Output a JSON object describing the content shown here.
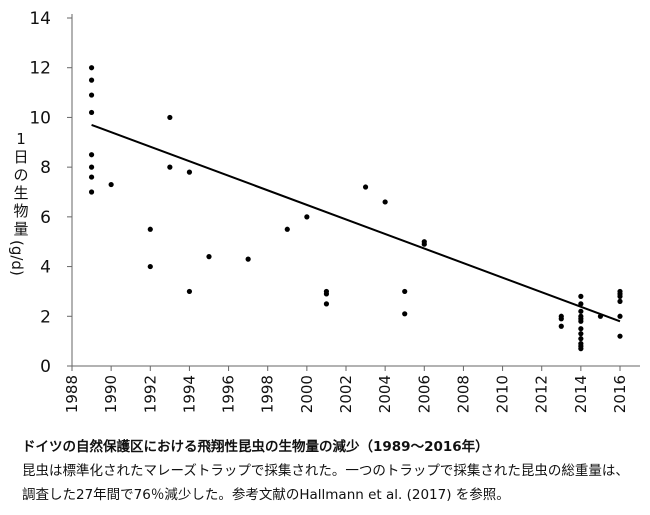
{
  "chart_data": {
    "type": "scatter",
    "ylabel_chars": [
      "1",
      "日",
      "の",
      "生",
      "物",
      "量"
    ],
    "ylabel_unit": "(g/d)",
    "xlim": [
      1988,
      2017
    ],
    "ylim": [
      0,
      14
    ],
    "xticks": [
      1988,
      1990,
      1992,
      1994,
      1996,
      1998,
      2000,
      2002,
      2004,
      2006,
      2008,
      2010,
      2012,
      2014,
      2016
    ],
    "yticks": [
      0,
      2,
      4,
      6,
      8,
      10,
      12,
      14
    ],
    "grid": false,
    "points": [
      {
        "x": 1989,
        "y": 12.0
      },
      {
        "x": 1989,
        "y": 11.5
      },
      {
        "x": 1989,
        "y": 10.9
      },
      {
        "x": 1989,
        "y": 10.2
      },
      {
        "x": 1989,
        "y": 8.5
      },
      {
        "x": 1989,
        "y": 8.0
      },
      {
        "x": 1989,
        "y": 7.6
      },
      {
        "x": 1989,
        "y": 7.0
      },
      {
        "x": 1990,
        "y": 7.3
      },
      {
        "x": 1992,
        "y": 5.5
      },
      {
        "x": 1992,
        "y": 4.0
      },
      {
        "x": 1993,
        "y": 10.0
      },
      {
        "x": 1993,
        "y": 8.0
      },
      {
        "x": 1994,
        "y": 7.8
      },
      {
        "x": 1994,
        "y": 3.0
      },
      {
        "x": 1995,
        "y": 4.4
      },
      {
        "x": 1997,
        "y": 4.3
      },
      {
        "x": 1999,
        "y": 5.5
      },
      {
        "x": 2000,
        "y": 6.0
      },
      {
        "x": 2001,
        "y": 3.0
      },
      {
        "x": 2001,
        "y": 2.9
      },
      {
        "x": 2001,
        "y": 2.5
      },
      {
        "x": 2003,
        "y": 7.2
      },
      {
        "x": 2004,
        "y": 6.6
      },
      {
        "x": 2005,
        "y": 3.0
      },
      {
        "x": 2005,
        "y": 2.1
      },
      {
        "x": 2006,
        "y": 5.0
      },
      {
        "x": 2006,
        "y": 4.9
      },
      {
        "x": 2013,
        "y": 2.0
      },
      {
        "x": 2013,
        "y": 1.9
      },
      {
        "x": 2013,
        "y": 1.6
      },
      {
        "x": 2014,
        "y": 2.8
      },
      {
        "x": 2014,
        "y": 2.5
      },
      {
        "x": 2014,
        "y": 2.2
      },
      {
        "x": 2014,
        "y": 2.0
      },
      {
        "x": 2014,
        "y": 1.9
      },
      {
        "x": 2014,
        "y": 1.8
      },
      {
        "x": 2014,
        "y": 1.5
      },
      {
        "x": 2014,
        "y": 1.3
      },
      {
        "x": 2014,
        "y": 1.1
      },
      {
        "x": 2014,
        "y": 0.9
      },
      {
        "x": 2014,
        "y": 0.8
      },
      {
        "x": 2014,
        "y": 0.7
      },
      {
        "x": 2015,
        "y": 2.0
      },
      {
        "x": 2016,
        "y": 3.0
      },
      {
        "x": 2016,
        "y": 2.9
      },
      {
        "x": 2016,
        "y": 2.8
      },
      {
        "x": 2016,
        "y": 2.6
      },
      {
        "x": 2016,
        "y": 2.0
      },
      {
        "x": 2016,
        "y": 1.2
      }
    ],
    "trendline": {
      "x": [
        1989,
        2016
      ],
      "y": [
        9.7,
        1.8
      ]
    },
    "colors": {
      "point": "#000000",
      "line": "#000000",
      "axis": "#666666"
    }
  },
  "caption": {
    "title": "ドイツの自然保護区における飛翔性昆虫の生物量の減少（1989〜2016年）",
    "body": "昆虫は標準化されたマレーズトラップで採集された。一つのトラップで採集された昆虫の総重量は、調査した27年間で76％減少した。参考文献のHallmann et al. (2017) を参照。"
  }
}
